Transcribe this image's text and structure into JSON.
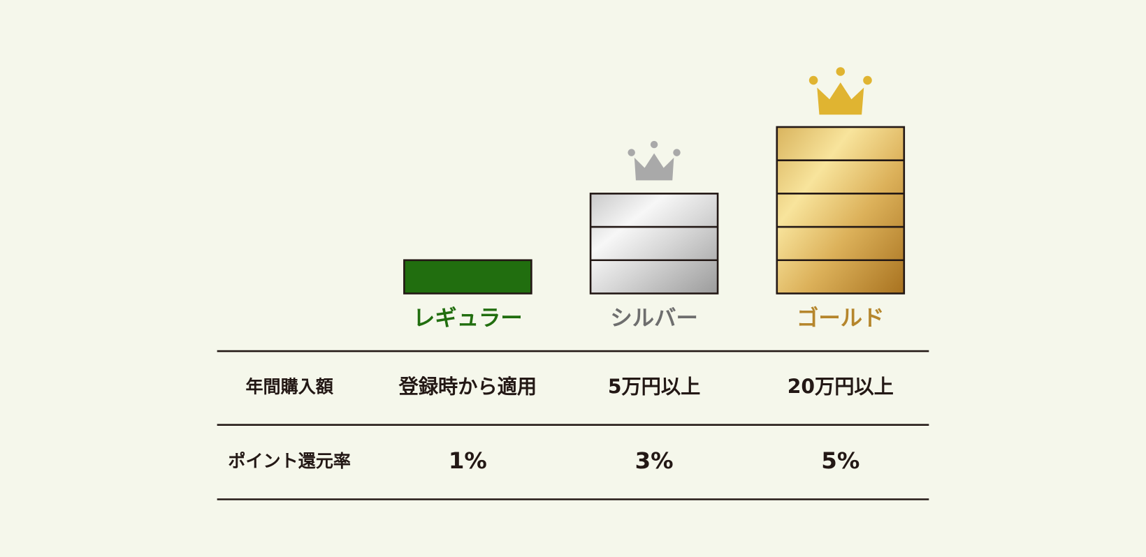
{
  "row_headers": [
    "年間購入額",
    "ポイント還元率"
  ],
  "tiers": [
    {
      "name": "レギュラー",
      "color": "#216e0f",
      "label_color": "#216e0f",
      "purchase": "登録時から適用",
      "rate": {
        "value": 1,
        "label": "1%"
      }
    },
    {
      "name": "シルバー",
      "color": "silver",
      "label_color": "#6e6e6e",
      "purchase": "5万円以上",
      "rate": {
        "value": 3,
        "label": "3%"
      }
    },
    {
      "name": "ゴールド",
      "color": "gold",
      "label_color": "#b5862c",
      "purchase": "20万円以上",
      "rate": {
        "value": 5,
        "label": "5%"
      }
    }
  ]
}
